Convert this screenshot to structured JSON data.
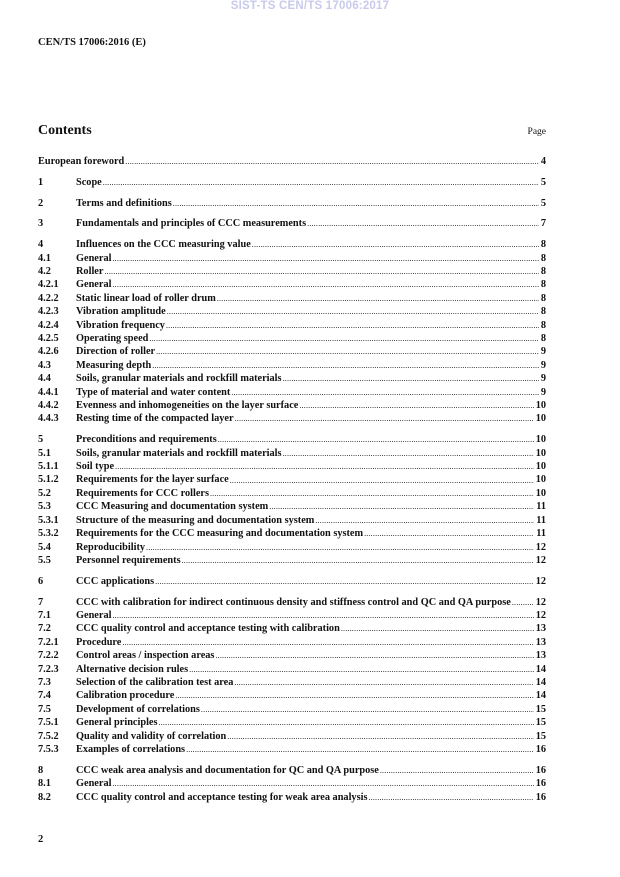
{
  "watermark": "SIST-TS CEN/TS 17006:2017",
  "header": {
    "doc_id": "CEN/TS 17006:2016 (E)"
  },
  "contents": {
    "title": "Contents",
    "page_label": "Page",
    "groups": [
      [
        {
          "num": "",
          "title": "European foreword",
          "page": "4"
        }
      ],
      [
        {
          "num": "1",
          "title": "Scope",
          "page": "5"
        }
      ],
      [
        {
          "num": "2",
          "title": "Terms and definitions",
          "page": "5"
        }
      ],
      [
        {
          "num": "3",
          "title": "Fundamentals and principles of CCC measurements",
          "page": "7"
        }
      ],
      [
        {
          "num": "4",
          "title": "Influences on the CCC measuring value",
          "page": "8"
        },
        {
          "num": "4.1",
          "title": "General",
          "page": "8"
        },
        {
          "num": "4.2",
          "title": "Roller",
          "page": "8"
        },
        {
          "num": "4.2.1",
          "title": "General",
          "page": "8"
        },
        {
          "num": "4.2.2",
          "title": "Static linear load of roller drum",
          "page": "8"
        },
        {
          "num": "4.2.3",
          "title": "Vibration amplitude",
          "page": "8"
        },
        {
          "num": "4.2.4",
          "title": "Vibration frequency",
          "page": "8"
        },
        {
          "num": "4.2.5",
          "title": "Operating speed",
          "page": "8"
        },
        {
          "num": "4.2.6",
          "title": "Direction of roller",
          "page": "9"
        },
        {
          "num": "4.3",
          "title": "Measuring depth",
          "page": "9"
        },
        {
          "num": "4.4",
          "title": "Soils, granular materials and rockfill materials",
          "page": "9"
        },
        {
          "num": "4.4.1",
          "title": "Type of material and water content",
          "page": "9"
        },
        {
          "num": "4.4.2",
          "title": "Evenness and inhomogeneities on the layer surface",
          "page": "10"
        },
        {
          "num": "4.4.3",
          "title": "Resting time of the compacted layer",
          "page": "10"
        }
      ],
      [
        {
          "num": "5",
          "title": "Preconditions and requirements",
          "page": "10"
        },
        {
          "num": "5.1",
          "title": "Soils, granular materials and rockfill materials",
          "page": "10"
        },
        {
          "num": "5.1.1",
          "title": "Soil type",
          "page": "10"
        },
        {
          "num": "5.1.2",
          "title": "Requirements for the layer surface",
          "page": "10"
        },
        {
          "num": "5.2",
          "title": "Requirements for CCC rollers",
          "page": "10"
        },
        {
          "num": "5.3",
          "title": "CCC Measuring and documentation system",
          "page": "11"
        },
        {
          "num": "5.3.1",
          "title": "Structure of the measuring and documentation system",
          "page": "11"
        },
        {
          "num": "5.3.2",
          "title": "Requirements for the CCC measuring and documentation system",
          "page": "11"
        },
        {
          "num": "5.4",
          "title": "Reproducibility",
          "page": "12"
        },
        {
          "num": "5.5",
          "title": "Personnel requirements",
          "page": "12"
        }
      ],
      [
        {
          "num": "6",
          "title": "CCC applications",
          "page": "12"
        }
      ],
      [
        {
          "num": "7",
          "title": "CCC with calibration for indirect continuous density and stiffness control and QC and QA purpose",
          "page": "12"
        },
        {
          "num": "7.1",
          "title": "General",
          "page": "12"
        },
        {
          "num": "7.2",
          "title": "CCC quality control and acceptance testing with calibration",
          "page": "13"
        },
        {
          "num": "7.2.1",
          "title": "Procedure",
          "page": "13"
        },
        {
          "num": "7.2.2",
          "title": "Control areas / inspection areas",
          "page": "13"
        },
        {
          "num": "7.2.3",
          "title": "Alternative decision rules",
          "page": "14"
        },
        {
          "num": "7.3",
          "title": "Selection of the calibration test area",
          "page": "14"
        },
        {
          "num": "7.4",
          "title": "Calibration procedure",
          "page": "14"
        },
        {
          "num": "7.5",
          "title": "Development of correlations",
          "page": "15"
        },
        {
          "num": "7.5.1",
          "title": "General principles",
          "page": "15"
        },
        {
          "num": "7.5.2",
          "title": "Quality and validity of correlation",
          "page": "15"
        },
        {
          "num": "7.5.3",
          "title": "Examples of correlations",
          "page": "16"
        }
      ],
      [
        {
          "num": "8",
          "title": "CCC weak area analysis and documentation for QC and QA purpose",
          "page": "16"
        },
        {
          "num": "8.1",
          "title": "General",
          "page": "16"
        },
        {
          "num": "8.2",
          "title": "CCC quality control and acceptance testing for weak area analysis",
          "page": "16"
        }
      ]
    ]
  },
  "footer": {
    "page_number": "2"
  }
}
